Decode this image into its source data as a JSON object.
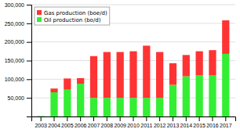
{
  "chart_data": {
    "type": "bar",
    "stacked": true,
    "categories": [
      "2003",
      "2004",
      "2005",
      "2006",
      "2007",
      "2008",
      "2009",
      "2010",
      "2011",
      "2012",
      "2013",
      "2014",
      "2015",
      "2016",
      "2017"
    ],
    "series": [
      {
        "name": "Oil production (bo/d)",
        "color": "#33ee33",
        "values": [
          1000,
          65000,
          72000,
          88000,
          50000,
          50000,
          50000,
          50000,
          50000,
          50000,
          85000,
          108000,
          110000,
          110000,
          168000
        ]
      },
      {
        "name": "Gas production (boe/d)",
        "color": "#ff3333",
        "values": [
          0,
          10000,
          30000,
          15000,
          112000,
          123000,
          123000,
          125000,
          140000,
          123000,
          58000,
          57000,
          65000,
          68000,
          90000
        ]
      }
    ],
    "ylim": [
      0,
      300000
    ],
    "yticks": [
      {
        "value": 0,
        "label": null
      },
      {
        "value": 50000,
        "label": "50,000"
      },
      {
        "value": 100000,
        "label": "100,000"
      },
      {
        "value": 150000,
        "label": "150,000"
      },
      {
        "value": 200000,
        "label": "200,000"
      },
      {
        "value": 250000,
        "label": "250,000"
      },
      {
        "value": 300000,
        "label": "300,000"
      }
    ],
    "grid": true,
    "legend": "upper left"
  }
}
